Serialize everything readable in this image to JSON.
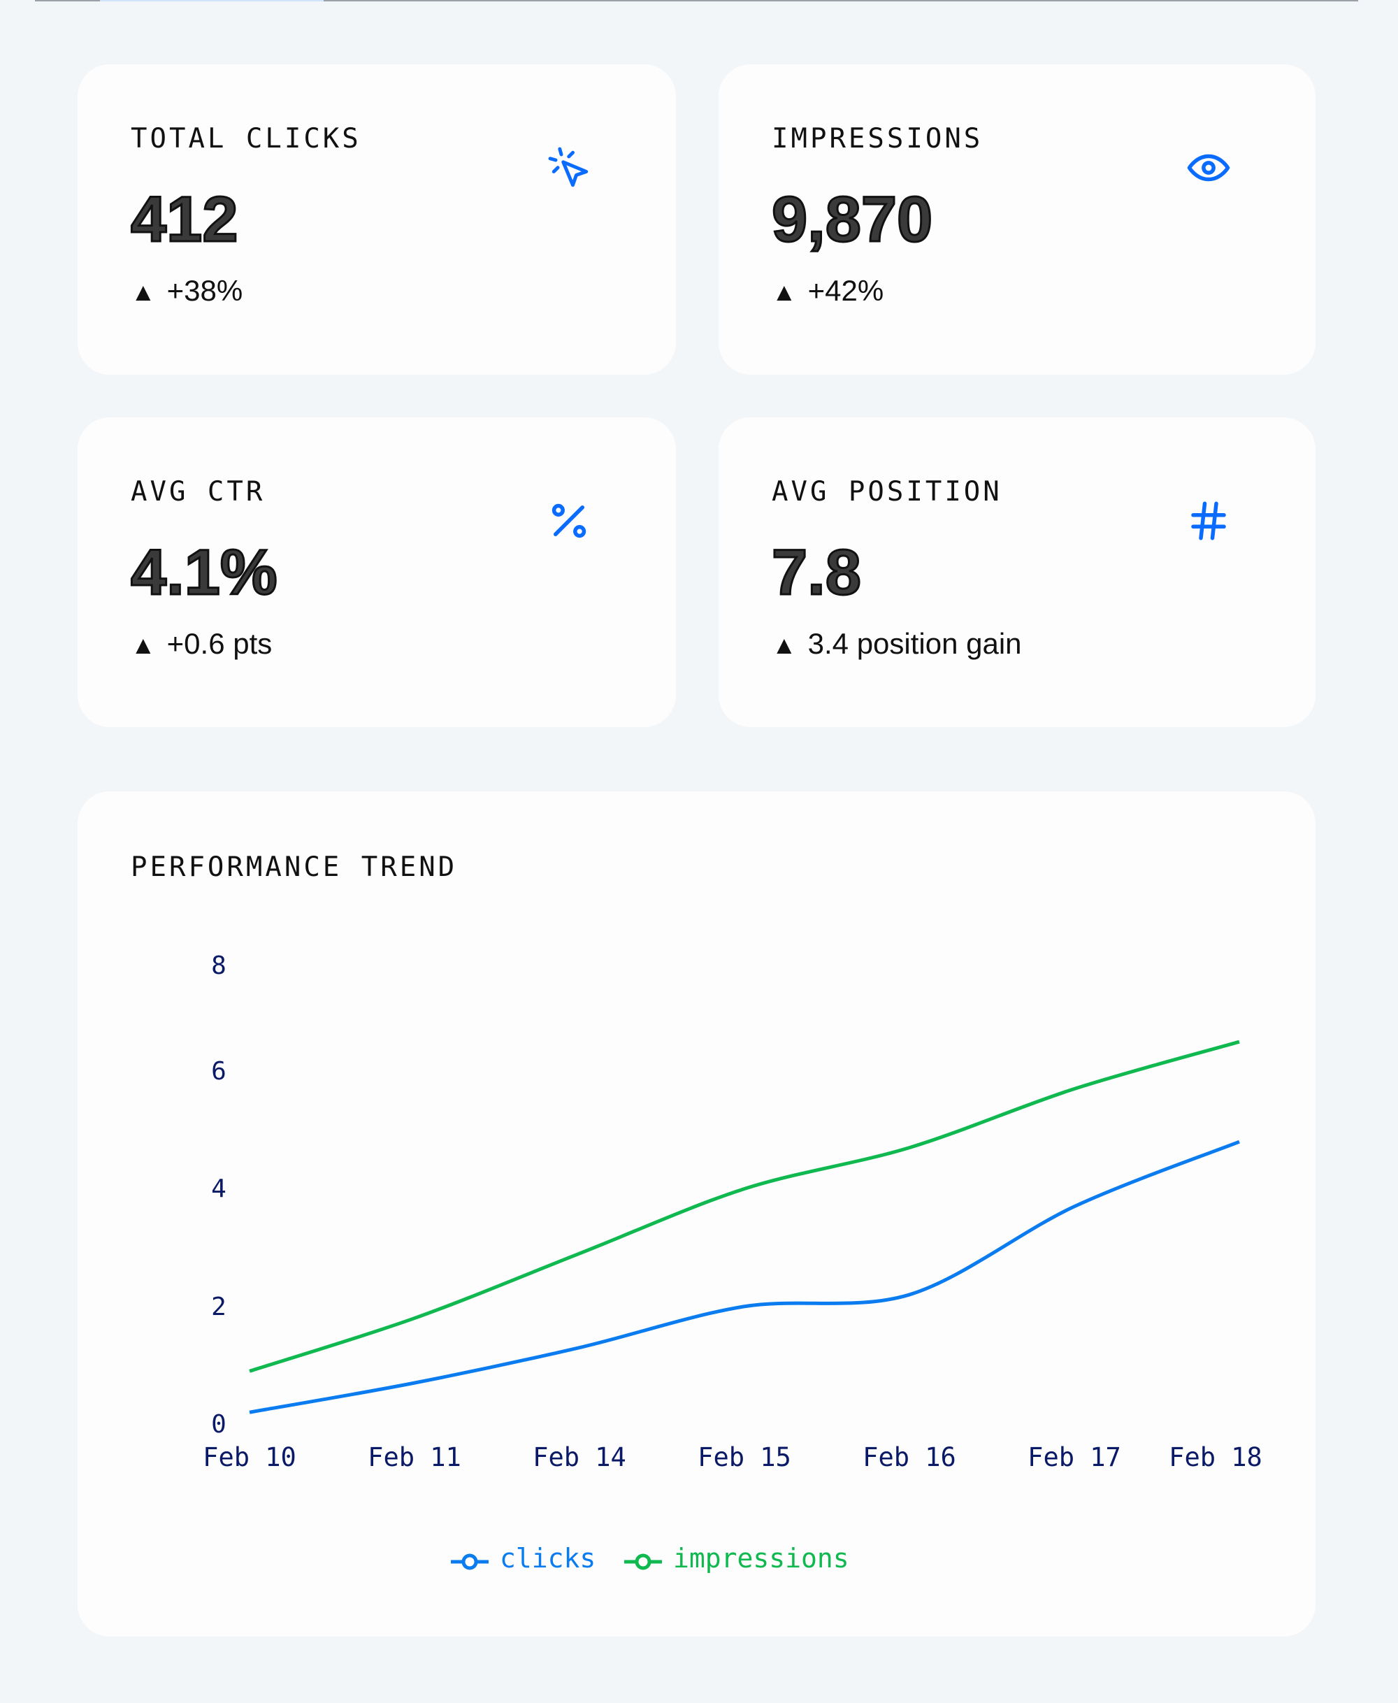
{
  "colors": {
    "accent": "#0a6cff",
    "clicks": "#0a7cf0",
    "impressions": "#10b94f",
    "background": "#f3f6f9",
    "card": "#fdfdfd"
  },
  "cards": [
    {
      "label": "TOTAL CLICKS",
      "value": "412",
      "delta": "+38%",
      "delta_icon": "triangle-up",
      "icon": "cursor-click-icon"
    },
    {
      "label": "IMPRESSIONS",
      "value": "9,870",
      "delta": "+42%",
      "delta_icon": "triangle-up",
      "icon": "eye-icon"
    },
    {
      "label": "AVG CTR",
      "value": "4.1%",
      "delta": "+0.6 pts",
      "delta_icon": "triangle-up",
      "icon": "percent-icon"
    },
    {
      "label": "AVG POSITION",
      "value": "7.8",
      "delta": "3.4 position gain",
      "delta_icon": "triangle-up",
      "icon": "hash-icon"
    }
  ],
  "delta_glyph": "▲",
  "chart": {
    "title": "PERFORMANCE TREND"
  },
  "chart_data": {
    "type": "line",
    "title": "PERFORMANCE TREND",
    "categories": [
      "Feb 10",
      "Feb 11",
      "Feb 14",
      "Feb 15",
      "Feb 16",
      "Feb 17",
      "Feb 18"
    ],
    "series": [
      {
        "name": "clicks",
        "color": "#0a7cf0",
        "values": [
          0.2,
          0.7,
          1.3,
          2.0,
          2.2,
          3.7,
          4.8
        ]
      },
      {
        "name": "impressions",
        "color": "#10b94f",
        "values": [
          0.9,
          1.8,
          2.9,
          4.0,
          4.7,
          5.7,
          6.5
        ]
      }
    ],
    "yticks": [
      0,
      2,
      4,
      6,
      8
    ],
    "ylim": [
      0,
      8
    ],
    "grid": false,
    "legend": "bottom-center"
  }
}
